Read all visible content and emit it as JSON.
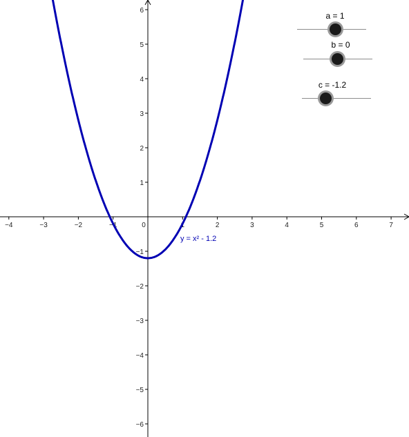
{
  "graph": {
    "function_label": "y = x² - 1.2",
    "curve_color": "#0000b3"
  },
  "sliders": [
    {
      "name": "a",
      "label": "a = 1",
      "value": 1,
      "min": -5,
      "max": 5
    },
    {
      "name": "b",
      "label": "b = 0",
      "value": 0,
      "min": -5,
      "max": 5
    },
    {
      "name": "c",
      "label": "c = -1.2",
      "value": -1.2,
      "min": -5,
      "max": 5
    }
  ],
  "chart_data": {
    "type": "line",
    "series": [
      {
        "name": "y = x² - 1.2",
        "x": [
          -2.7,
          -2,
          -1.5,
          -1.1,
          -0.5,
          0,
          0.5,
          1.1,
          1.5,
          2,
          2.7
        ],
        "y": [
          6.09,
          2.8,
          1.05,
          0.01,
          -0.95,
          -1.2,
          -0.95,
          0.01,
          1.05,
          2.8,
          6.09
        ]
      }
    ],
    "xlim": [
      -4.2,
      7.5
    ],
    "ylim": [
      -6.3,
      6.3
    ],
    "xticks": [
      -4,
      -3,
      -2,
      -1,
      0,
      1,
      2,
      3,
      4,
      5,
      6,
      7
    ],
    "yticks": [
      -6,
      -5,
      -4,
      -3,
      -2,
      -1,
      1,
      2,
      3,
      4,
      5,
      6
    ],
    "xtick_labels": [
      "−4",
      "−3",
      "−2",
      "−1",
      "0",
      "1",
      "2",
      "3",
      "4",
      "5",
      "6",
      "7"
    ],
    "ytick_labels": [
      "−6",
      "−5",
      "−4",
      "−3",
      "−2",
      "−1",
      "1",
      "2",
      "3",
      "4",
      "5",
      "6"
    ],
    "grid": false
  }
}
